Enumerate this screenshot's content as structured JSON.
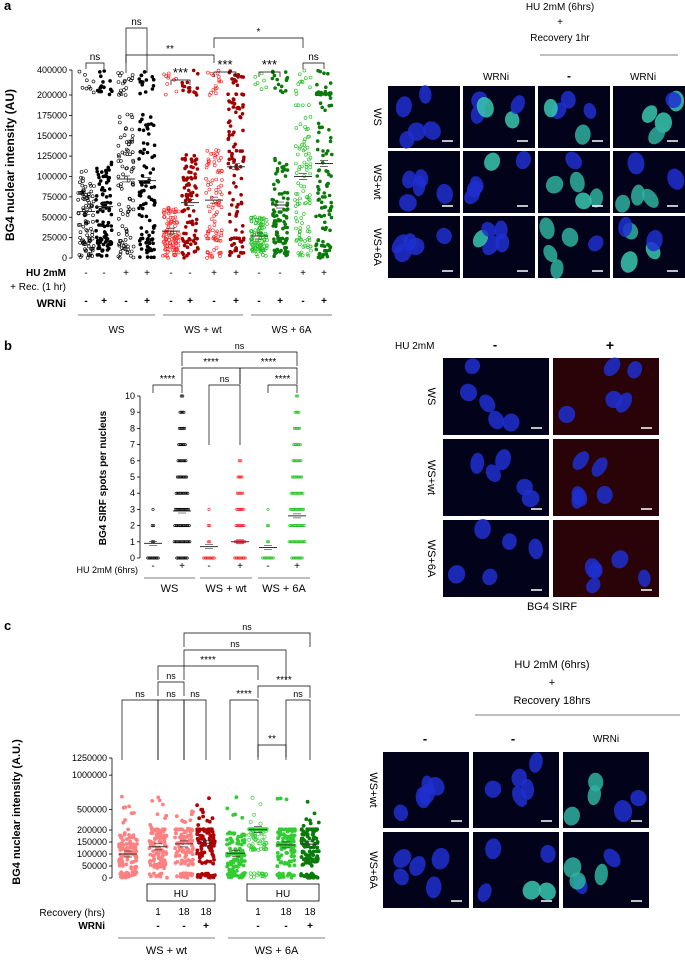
{
  "panels": {
    "a": {
      "letter": "a",
      "header_line1": "HU 2mM (6hrs)",
      "header_plus": "+",
      "header_line2": "Recovery 1hr",
      "col_wrni_left": "WRNi",
      "col_dash": "-",
      "col_wrni_right": "WRNi",
      "row_labels": [
        "WS",
        "WS+wt",
        "WS+6A"
      ]
    },
    "b": {
      "letter": "b",
      "hu_label": "HU 2mM",
      "col_minus": "-",
      "col_plus": "+",
      "row_labels": [
        "WS",
        "WS+wt",
        "WS+6A"
      ],
      "caption": "BG4 SIRF"
    },
    "c": {
      "letter": "c",
      "header_line1": "HU 2mM (6hrs)",
      "header_plus": "+",
      "header_line2": "Recovery 18hrs",
      "col_dash1": "-",
      "col_dash2": "-",
      "col_wrni": "WRNi",
      "row_labels": [
        "WS+wt",
        "WS+6A"
      ]
    }
  },
  "chart_data": [
    {
      "id": "a",
      "type": "scatter",
      "ylabel": "BG4 nuclear intensity (AU)",
      "ytick_labels": [
        "0",
        "25000",
        "50000",
        "75000",
        "100000",
        "125000",
        "150000",
        "175000",
        "200000",
        "400000"
      ],
      "ytick_values": [
        0,
        25000,
        50000,
        75000,
        100000,
        125000,
        150000,
        175000,
        200000,
        400000
      ],
      "axis_break": "between 200000 and 400000",
      "row1_label": "HU 2mM",
      "row2_label": "+ Rec. (1 hr)",
      "row3_label": "WRNi",
      "groups": [
        {
          "group": "WS",
          "hu": "-",
          "wrni": "-",
          "mean": 57000,
          "color": "#000000",
          "fill": "open"
        },
        {
          "group": "WS",
          "hu": "-",
          "wrni": "+",
          "mean": 63000,
          "color": "#000000",
          "fill": "closed"
        },
        {
          "group": "WS",
          "hu": "+",
          "wrni": "-",
          "mean": 97000,
          "color": "#000000",
          "fill": "open"
        },
        {
          "group": "WS",
          "hu": "+",
          "wrni": "+",
          "mean": 95000,
          "color": "#000000",
          "fill": "closed"
        },
        {
          "group": "WS + wt",
          "hu": "-",
          "wrni": "-",
          "mean": 33000,
          "color": "#ff2020",
          "fill": "open"
        },
        {
          "group": "WS + wt",
          "hu": "-",
          "wrni": "+",
          "mean": 68000,
          "color": "#a00000",
          "fill": "closed"
        },
        {
          "group": "WS + wt",
          "hu": "+",
          "wrni": "-",
          "mean": 71000,
          "color": "#ff2020",
          "fill": "open"
        },
        {
          "group": "WS + wt",
          "hu": "+",
          "wrni": "+",
          "mean": 112000,
          "color": "#a00000",
          "fill": "closed"
        },
        {
          "group": "WS + 6A",
          "hu": "-",
          "wrni": "-",
          "mean": 27000,
          "color": "#1fbf1f",
          "fill": "open"
        },
        {
          "group": "WS + 6A",
          "hu": "-",
          "wrni": "+",
          "mean": 65000,
          "color": "#0a7a0a",
          "fill": "closed"
        },
        {
          "group": "WS + 6A",
          "hu": "+",
          "wrni": "-",
          "mean": 100000,
          "color": "#1fbf1f",
          "fill": "open"
        },
        {
          "group": "WS + 6A",
          "hu": "+",
          "wrni": "+",
          "mean": 116000,
          "color": "#0a7a0a",
          "fill": "closed"
        }
      ],
      "group_labels": [
        "WS",
        "WS + wt",
        "WS + 6A"
      ],
      "significance": [
        {
          "from": 0,
          "to": 1,
          "label": "ns"
        },
        {
          "from": 2,
          "to": 3,
          "label": "ns"
        },
        {
          "from": 2,
          "to": 6,
          "label": "**"
        },
        {
          "from": 6,
          "to": 10,
          "label": "*"
        },
        {
          "from": 4,
          "to": 5,
          "label": "***"
        },
        {
          "from": 6,
          "to": 7,
          "label": "***"
        },
        {
          "from": 8,
          "to": 9,
          "label": "***"
        },
        {
          "from": 10,
          "to": 11,
          "label": "ns"
        }
      ]
    },
    {
      "id": "b",
      "type": "scatter",
      "ylabel": "BG4 SIRF spots per nucleus",
      "ytick_labels": [
        "0",
        "1",
        "2",
        "3",
        "4",
        "5",
        "6",
        "7",
        "8",
        "9",
        "10"
      ],
      "ylim": [
        0,
        10
      ],
      "row_label": "HU 2mM (6hrs)",
      "groups": [
        {
          "group": "WS",
          "hu": "-",
          "mean": 0.9,
          "color": "#000000"
        },
        {
          "group": "WS",
          "hu": "+",
          "mean": 2.9,
          "color": "#000000"
        },
        {
          "group": "WS + wt",
          "hu": "-",
          "mean": 0.7,
          "color": "#ff2020"
        },
        {
          "group": "WS + wt",
          "hu": "+",
          "mean": 1.0,
          "color": "#ff2020"
        },
        {
          "group": "WS + 6A",
          "hu": "-",
          "mean": 0.65,
          "color": "#1fbf1f"
        },
        {
          "group": "WS + 6A",
          "hu": "+",
          "mean": 2.6,
          "color": "#1fbf1f"
        }
      ],
      "group_labels": [
        "WS",
        "WS + wt",
        "WS + 6A"
      ],
      "significance": [
        {
          "from": 0,
          "to": 1,
          "label": "****"
        },
        {
          "from": 2,
          "to": 3,
          "label": "ns"
        },
        {
          "from": 4,
          "to": 5,
          "label": "****"
        },
        {
          "from": 1,
          "to": 3,
          "label": "****"
        },
        {
          "from": 3,
          "to": 5,
          "label": "****"
        },
        {
          "from": 1,
          "to": 5,
          "label": "ns"
        }
      ]
    },
    {
      "id": "c",
      "type": "scatter",
      "ylabel": "BG4 nuclear intensity (A.U.)",
      "ytick_labels": [
        "0",
        "50000",
        "100000",
        "150000",
        "200000",
        "500000",
        "1000000",
        "1250000"
      ],
      "ytick_values": [
        0,
        50000,
        100000,
        150000,
        200000,
        500000,
        1000000,
        1250000
      ],
      "axis_break": "between 200000 and 500000",
      "hu_box_label": "HU",
      "row1_label": "Recovery (hrs)",
      "row2_label": "WRNi",
      "groups": [
        {
          "group": "WS + wt",
          "rec": "-",
          "wrni": "-",
          "mean": 100000,
          "color": "#ff8080",
          "fill": "closed"
        },
        {
          "group": "WS + wt",
          "rec": "1",
          "wrni": "-",
          "mean": 130000,
          "color": "#ff8080",
          "fill": "closed"
        },
        {
          "group": "WS + wt",
          "rec": "18",
          "wrni": "-",
          "mean": 142000,
          "color": "#ff8080",
          "fill": "closed"
        },
        {
          "group": "WS + wt",
          "rec": "18",
          "wrni": "+",
          "mean": 145000,
          "color": "#b00000",
          "fill": "closed"
        },
        {
          "group": "WS + 6A",
          "rec": "-",
          "wrni": "-",
          "mean": 103000,
          "color": "#33cc33",
          "fill": "closed"
        },
        {
          "group": "WS + 6A",
          "rec": "1",
          "wrni": "-",
          "mean": 205000,
          "color": "#33cc33",
          "fill": "open"
        },
        {
          "group": "WS + 6A",
          "rec": "18",
          "wrni": "-",
          "mean": 138000,
          "color": "#33cc33",
          "fill": "closed"
        },
        {
          "group": "WS + 6A",
          "rec": "18",
          "wrni": "+",
          "mean": 141000,
          "color": "#0a7a0a",
          "fill": "closed"
        }
      ],
      "group_labels": [
        "WS + wt",
        "WS + 6A"
      ],
      "significance": [
        {
          "from": 0,
          "to": 1,
          "label": "ns"
        },
        {
          "from": 1,
          "to": 2,
          "label": "ns"
        },
        {
          "from": 2,
          "to": 3,
          "label": "ns"
        },
        {
          "from": 4,
          "to": 5,
          "label": "****"
        },
        {
          "from": 5,
          "to": 6,
          "label": "**"
        },
        {
          "from": 6,
          "to": 7,
          "label": "ns"
        },
        {
          "from": 5,
          "to": 7,
          "label": "****"
        },
        {
          "from": 1,
          "to": 2,
          "label": "ns",
          "level": "wide"
        },
        {
          "from": 1,
          "to": 5,
          "label": "****"
        },
        {
          "from": 2,
          "to": 6,
          "label": "ns"
        },
        {
          "from": 2,
          "to": 7,
          "label": "ns"
        }
      ]
    }
  ]
}
